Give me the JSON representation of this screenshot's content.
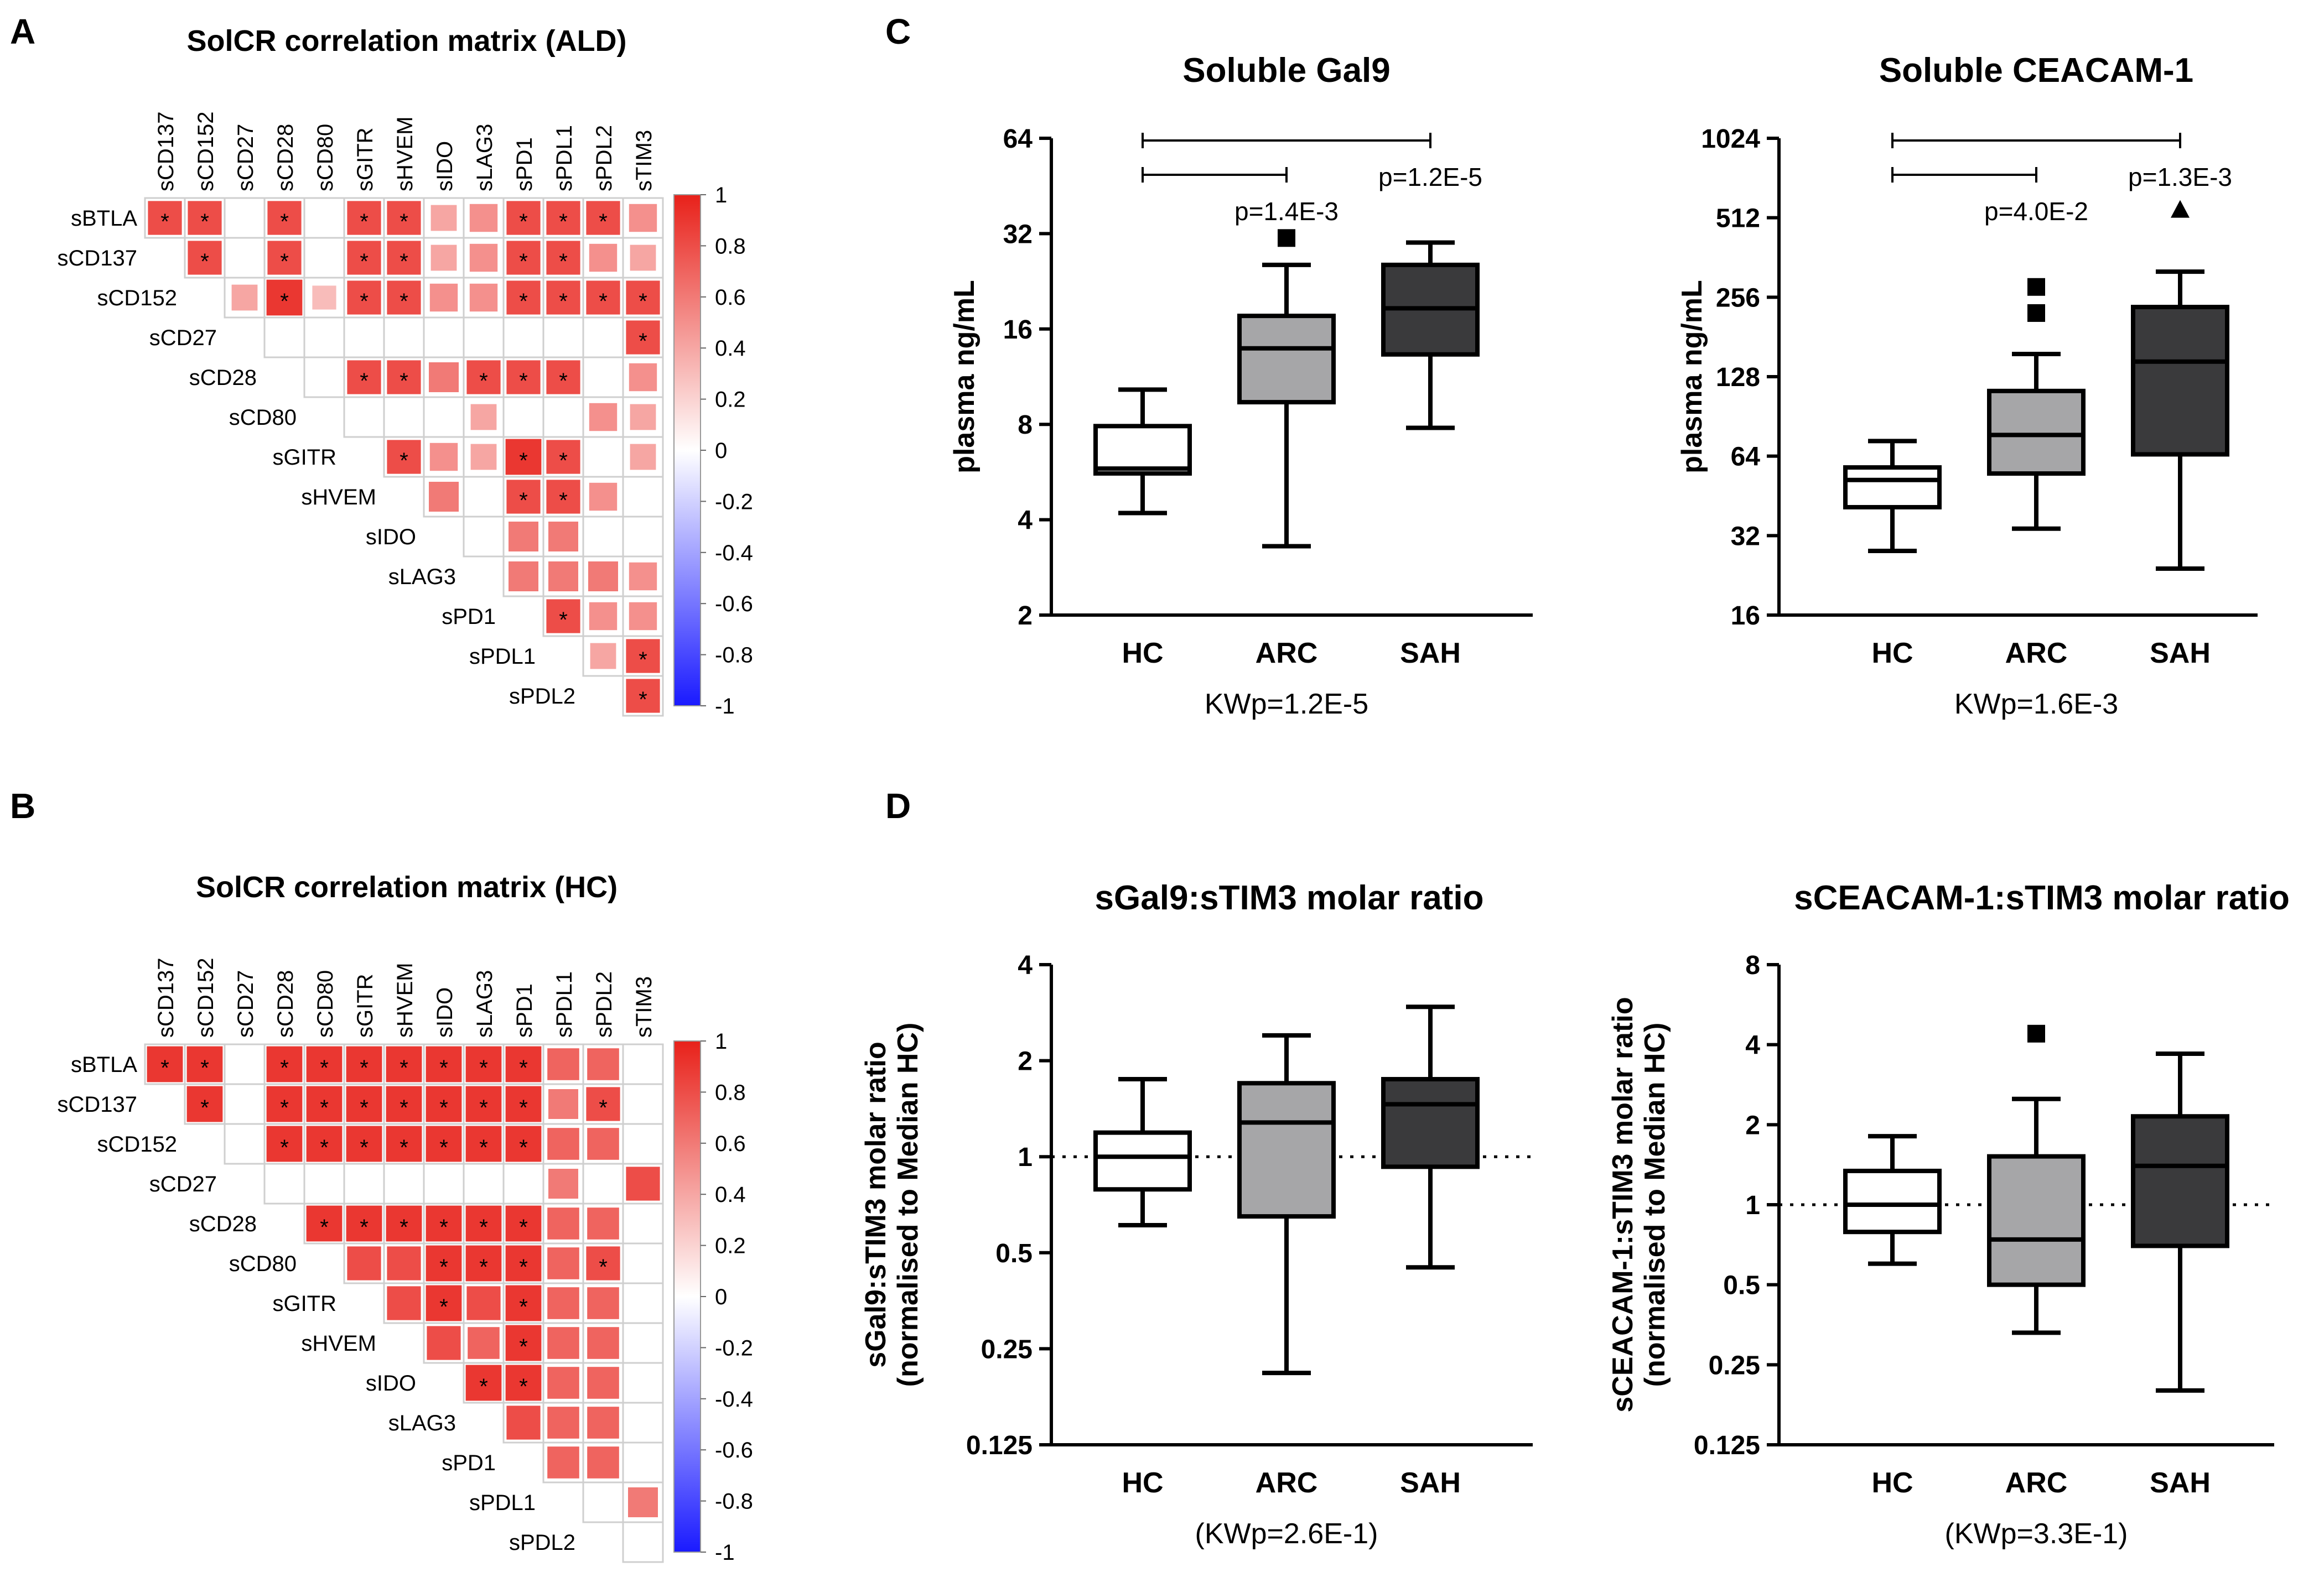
{
  "panels": {
    "A": "A",
    "B": "B",
    "C": "C",
    "D": "D"
  },
  "colorbar": {
    "ticks": [
      "1",
      "0.8",
      "0.6",
      "0.4",
      "0.2",
      "0",
      "-0.2",
      "-0.4",
      "-0.6",
      "-0.8",
      "-1"
    ],
    "colors": {
      "pos": "#e8211a",
      "mid": "#ffffff",
      "neg": "#1a1aff"
    }
  },
  "chart_data": [
    {
      "id": "A",
      "type": "heatmap",
      "title": "SolCR correlation matrix (ALD)",
      "col_labels": [
        "sCD137",
        "sCD152",
        "sCD27",
        "sCD28",
        "sCD80",
        "sGITR",
        "sHVEM",
        "sIDO",
        "sLAG3",
        "sPD1",
        "sPDL1",
        "sPDL2",
        "sTIM3"
      ],
      "row_labels": [
        "sBTLA",
        "sCD137",
        "sCD152",
        "sCD27",
        "sCD28",
        "sCD80",
        "sGITR",
        "sHVEM",
        "sIDO",
        "sLAG3",
        "sPD1",
        "sPDL1",
        "sPDL2"
      ],
      "values": [
        [
          0.8,
          0.8,
          0,
          0.8,
          0,
          0.8,
          0.8,
          0.4,
          0.5,
          0.8,
          0.8,
          0.8,
          0.5
        ],
        [
          null,
          0.8,
          0,
          0.8,
          0,
          0.8,
          0.8,
          0.4,
          0.5,
          0.8,
          0.8,
          0.5,
          0.4
        ],
        [
          null,
          null,
          0.4,
          0.9,
          0.3,
          0.8,
          0.8,
          0.5,
          0.5,
          0.8,
          0.8,
          0.8,
          0.8
        ],
        [
          null,
          null,
          null,
          0,
          0,
          0,
          0,
          0,
          0,
          0,
          0,
          0,
          0.8
        ],
        [
          null,
          null,
          null,
          null,
          0,
          0.8,
          0.8,
          0.6,
          0.8,
          0.8,
          0.8,
          0,
          0.5
        ],
        [
          null,
          null,
          null,
          null,
          null,
          0,
          0,
          0,
          0.4,
          0,
          0,
          0.5,
          0.4
        ],
        [
          null,
          null,
          null,
          null,
          null,
          null,
          0.8,
          0.5,
          0.4,
          0.9,
          0.8,
          0,
          0.4
        ],
        [
          null,
          null,
          null,
          null,
          null,
          null,
          null,
          0.6,
          0,
          0.8,
          0.8,
          0.5,
          0
        ],
        [
          null,
          null,
          null,
          null,
          null,
          null,
          null,
          null,
          0,
          0.6,
          0.6,
          0,
          0
        ],
        [
          null,
          null,
          null,
          null,
          null,
          null,
          null,
          null,
          null,
          0.6,
          0.6,
          0.6,
          0.5
        ],
        [
          null,
          null,
          null,
          null,
          null,
          null,
          null,
          null,
          null,
          null,
          0.8,
          0.5,
          0.5
        ],
        [
          null,
          null,
          null,
          null,
          null,
          null,
          null,
          null,
          null,
          null,
          null,
          0.4,
          0.8
        ],
        [
          null,
          null,
          null,
          null,
          null,
          null,
          null,
          null,
          null,
          null,
          null,
          null,
          0.8
        ]
      ],
      "significant": [
        [
          1,
          1,
          0,
          1,
          0,
          1,
          1,
          0,
          0,
          1,
          1,
          1,
          0
        ],
        [
          0,
          1,
          0,
          1,
          0,
          1,
          1,
          0,
          0,
          1,
          1,
          0,
          0
        ],
        [
          0,
          0,
          0,
          1,
          0,
          1,
          1,
          0,
          0,
          1,
          1,
          1,
          1
        ],
        [
          0,
          0,
          0,
          0,
          0,
          0,
          0,
          0,
          0,
          0,
          0,
          0,
          1
        ],
        [
          0,
          0,
          0,
          0,
          0,
          1,
          1,
          0,
          1,
          1,
          1,
          0,
          0
        ],
        [
          0,
          0,
          0,
          0,
          0,
          0,
          0,
          0,
          0,
          0,
          0,
          0,
          0
        ],
        [
          0,
          0,
          0,
          0,
          0,
          0,
          1,
          0,
          0,
          1,
          1,
          0,
          0
        ],
        [
          0,
          0,
          0,
          0,
          0,
          0,
          0,
          0,
          0,
          1,
          1,
          0,
          0
        ],
        [
          0,
          0,
          0,
          0,
          0,
          0,
          0,
          0,
          0,
          0,
          0,
          0,
          0
        ],
        [
          0,
          0,
          0,
          0,
          0,
          0,
          0,
          0,
          0,
          0,
          0,
          0,
          0
        ],
        [
          0,
          0,
          0,
          0,
          0,
          0,
          0,
          0,
          0,
          0,
          1,
          0,
          0
        ],
        [
          0,
          0,
          0,
          0,
          0,
          0,
          0,
          0,
          0,
          0,
          0,
          0,
          1
        ],
        [
          0,
          0,
          0,
          0,
          0,
          0,
          0,
          0,
          0,
          0,
          0,
          0,
          1
        ]
      ],
      "star": "*",
      "colorbar_range": [
        -1,
        1
      ]
    },
    {
      "id": "B",
      "type": "heatmap",
      "title": "SolCR correlation matrix (HC)",
      "col_labels": [
        "sCD137",
        "sCD152",
        "sCD27",
        "sCD28",
        "sCD80",
        "sGITR",
        "sHVEM",
        "sIDO",
        "sLAG3",
        "sPD1",
        "sPDL1",
        "sPDL2",
        "sTIM3"
      ],
      "row_labels": [
        "sBTLA",
        "sCD137",
        "sCD152",
        "sCD27",
        "sCD28",
        "sCD80",
        "sGITR",
        "sHVEM",
        "sIDO",
        "sLAG3",
        "sPD1",
        "sPDL1",
        "sPDL2"
      ],
      "values": [
        [
          0.9,
          0.9,
          0,
          0.9,
          0.9,
          0.9,
          0.9,
          0.9,
          0.9,
          0.9,
          0.7,
          0.7,
          0
        ],
        [
          null,
          0.9,
          0,
          0.9,
          0.9,
          0.9,
          0.9,
          0.9,
          0.9,
          0.9,
          0.6,
          0.8,
          0
        ],
        [
          null,
          null,
          0,
          0.9,
          0.9,
          0.9,
          0.9,
          0.9,
          0.9,
          0.9,
          0.7,
          0.7,
          0
        ],
        [
          null,
          null,
          null,
          0,
          0,
          0,
          0,
          0,
          0,
          0,
          0.6,
          0,
          0.8
        ],
        [
          null,
          null,
          null,
          null,
          0.9,
          0.9,
          0.9,
          0.9,
          0.9,
          0.9,
          0.7,
          0.7,
          0
        ],
        [
          null,
          null,
          null,
          null,
          null,
          0.8,
          0.8,
          0.9,
          0.9,
          0.9,
          0.7,
          0.8,
          0
        ],
        [
          null,
          null,
          null,
          null,
          null,
          null,
          0.8,
          0.9,
          0.8,
          0.9,
          0.7,
          0.7,
          0
        ],
        [
          null,
          null,
          null,
          null,
          null,
          null,
          null,
          0.8,
          0.7,
          0.9,
          0.7,
          0.7,
          0
        ],
        [
          null,
          null,
          null,
          null,
          null,
          null,
          null,
          null,
          0.9,
          0.9,
          0.7,
          0.7,
          0
        ],
        [
          null,
          null,
          null,
          null,
          null,
          null,
          null,
          null,
          null,
          0.8,
          0.7,
          0.7,
          0
        ],
        [
          null,
          null,
          null,
          null,
          null,
          null,
          null,
          null,
          null,
          null,
          0.7,
          0.7,
          0
        ],
        [
          null,
          null,
          null,
          null,
          null,
          null,
          null,
          null,
          null,
          null,
          null,
          0,
          0.6
        ],
        [
          null,
          null,
          null,
          null,
          null,
          null,
          null,
          null,
          null,
          null,
          null,
          null,
          0
        ]
      ],
      "significant": [
        [
          1,
          1,
          0,
          1,
          1,
          1,
          1,
          1,
          1,
          1,
          0,
          0,
          0
        ],
        [
          0,
          1,
          0,
          1,
          1,
          1,
          1,
          1,
          1,
          1,
          0,
          1,
          0
        ],
        [
          0,
          0,
          0,
          1,
          1,
          1,
          1,
          1,
          1,
          1,
          0,
          0,
          0
        ],
        [
          0,
          0,
          0,
          0,
          0,
          0,
          0,
          0,
          0,
          0,
          0,
          0,
          0
        ],
        [
          0,
          0,
          0,
          0,
          1,
          1,
          1,
          1,
          1,
          1,
          0,
          0,
          0
        ],
        [
          0,
          0,
          0,
          0,
          0,
          0,
          0,
          1,
          1,
          1,
          0,
          1,
          0
        ],
        [
          0,
          0,
          0,
          0,
          0,
          0,
          0,
          1,
          0,
          1,
          0,
          0,
          0
        ],
        [
          0,
          0,
          0,
          0,
          0,
          0,
          0,
          0,
          0,
          1,
          0,
          0,
          0
        ],
        [
          0,
          0,
          0,
          0,
          0,
          0,
          0,
          0,
          1,
          1,
          0,
          0,
          0
        ],
        [
          0,
          0,
          0,
          0,
          0,
          0,
          0,
          0,
          0,
          0,
          0,
          0,
          0
        ],
        [
          0,
          0,
          0,
          0,
          0,
          0,
          0,
          0,
          0,
          0,
          0,
          0,
          0
        ],
        [
          0,
          0,
          0,
          0,
          0,
          0,
          0,
          0,
          0,
          0,
          0,
          0,
          0
        ],
        [
          0,
          0,
          0,
          0,
          0,
          0,
          0,
          0,
          0,
          0,
          0,
          0,
          0
        ]
      ],
      "star": "*",
      "colorbar_range": [
        -1,
        1
      ]
    },
    {
      "id": "C1",
      "type": "box",
      "title": "Soluble Gal9",
      "ylabel": "plasma ng/mL",
      "yscale": "log2",
      "ylim": [
        2,
        64
      ],
      "yticks": [
        "2",
        "4",
        "8",
        "16",
        "32",
        "64"
      ],
      "categories": [
        "HC",
        "ARC",
        "SAH"
      ],
      "boxes": [
        {
          "min": 4.2,
          "q1": 5.6,
          "median": 5.8,
          "q3": 7.9,
          "max": 10.3,
          "fill": "#ffffff"
        },
        {
          "min": 3.3,
          "q1": 9.4,
          "median": 13.9,
          "q3": 17.6,
          "max": 25.5,
          "fill": "#a6a6a8"
        },
        {
          "min": 7.8,
          "q1": 13.3,
          "median": 18.6,
          "q3": 25.5,
          "max": 30.0,
          "fill": "#3a3a3c"
        }
      ],
      "outliers": [
        {
          "group": "ARC",
          "value": 31,
          "shape": "square"
        }
      ],
      "brackets": [
        {
          "from": "HC",
          "to": "SAH",
          "label": "p=1.2E-5"
        },
        {
          "from": "HC",
          "to": "ARC",
          "label": "p=1.4E-3"
        }
      ],
      "footer": "KWp=1.2E-5"
    },
    {
      "id": "C2",
      "type": "box",
      "title": "Soluble CEACAM-1",
      "ylabel": "plasma ng/mL",
      "yscale": "log2",
      "ylim": [
        16,
        1024
      ],
      "yticks": [
        "16",
        "32",
        "64",
        "128",
        "256",
        "512",
        "1024"
      ],
      "categories": [
        "HC",
        "ARC",
        "SAH"
      ],
      "boxes": [
        {
          "min": 28,
          "q1": 41,
          "median": 52,
          "q3": 58,
          "max": 73,
          "fill": "#ffffff"
        },
        {
          "min": 34,
          "q1": 55,
          "median": 77,
          "q3": 113,
          "max": 156,
          "fill": "#a6a6a8"
        },
        {
          "min": 24,
          "q1": 65,
          "median": 146,
          "q3": 235,
          "max": 320,
          "fill": "#3a3a3c"
        }
      ],
      "outliers": [
        {
          "group": "ARC",
          "value": 280,
          "shape": "square"
        },
        {
          "group": "ARC",
          "value": 223,
          "shape": "square"
        },
        {
          "group": "SAH",
          "value": 548,
          "shape": "triangle"
        }
      ],
      "brackets": [
        {
          "from": "HC",
          "to": "SAH",
          "label": "p=1.3E-3"
        },
        {
          "from": "HC",
          "to": "ARC",
          "label": "p=4.0E-2"
        }
      ],
      "footer": "KWp=1.6E-3"
    },
    {
      "id": "D1",
      "type": "box",
      "title": "sGal9:sTIM3 molar ratio",
      "ylabel": "sGal9:sTIM3 molar ratio",
      "ylabel2": "(normalised to Median HC)",
      "yscale": "log2",
      "ylim": [
        0.125,
        4
      ],
      "yticks": [
        "0.125",
        "0.25",
        "0.5",
        "1",
        "2",
        "4"
      ],
      "reference_line": 1,
      "categories": [
        "HC",
        "ARC",
        "SAH"
      ],
      "boxes": [
        {
          "min": 0.61,
          "q1": 0.79,
          "median": 1.0,
          "q3": 1.19,
          "max": 1.75,
          "fill": "#ffffff"
        },
        {
          "min": 0.21,
          "q1": 0.65,
          "median": 1.28,
          "q3": 1.7,
          "max": 2.4,
          "fill": "#a6a6a8"
        },
        {
          "min": 0.45,
          "q1": 0.93,
          "median": 1.46,
          "q3": 1.75,
          "max": 2.95,
          "fill": "#3a3a3c"
        }
      ],
      "outliers": [],
      "footer": "(KWp=2.6E-1)"
    },
    {
      "id": "D2",
      "type": "box",
      "title": "sCEACAM-1:sTIM3 molar ratio",
      "ylabel": "sCEACAM-1:sTIM3 molar ratio",
      "ylabel2": "(normalised to Median HC)",
      "yscale": "log2",
      "ylim": [
        0.125,
        8
      ],
      "yticks": [
        "0.125",
        "0.25",
        "0.5",
        "1",
        "2",
        "4",
        "8"
      ],
      "reference_line": 1,
      "categories": [
        "HC",
        "ARC",
        "SAH"
      ],
      "boxes": [
        {
          "min": 0.6,
          "q1": 0.79,
          "median": 1.0,
          "q3": 1.34,
          "max": 1.81,
          "fill": "#ffffff"
        },
        {
          "min": 0.33,
          "q1": 0.5,
          "median": 0.74,
          "q3": 1.52,
          "max": 2.5,
          "fill": "#a6a6a8"
        },
        {
          "min": 0.2,
          "q1": 0.7,
          "median": 1.4,
          "q3": 2.15,
          "max": 3.7,
          "fill": "#3a3a3c"
        }
      ],
      "outliers": [
        {
          "group": "ARC",
          "value": 4.4,
          "shape": "square"
        }
      ],
      "footer": "(KWp=3.3E-1)"
    }
  ]
}
